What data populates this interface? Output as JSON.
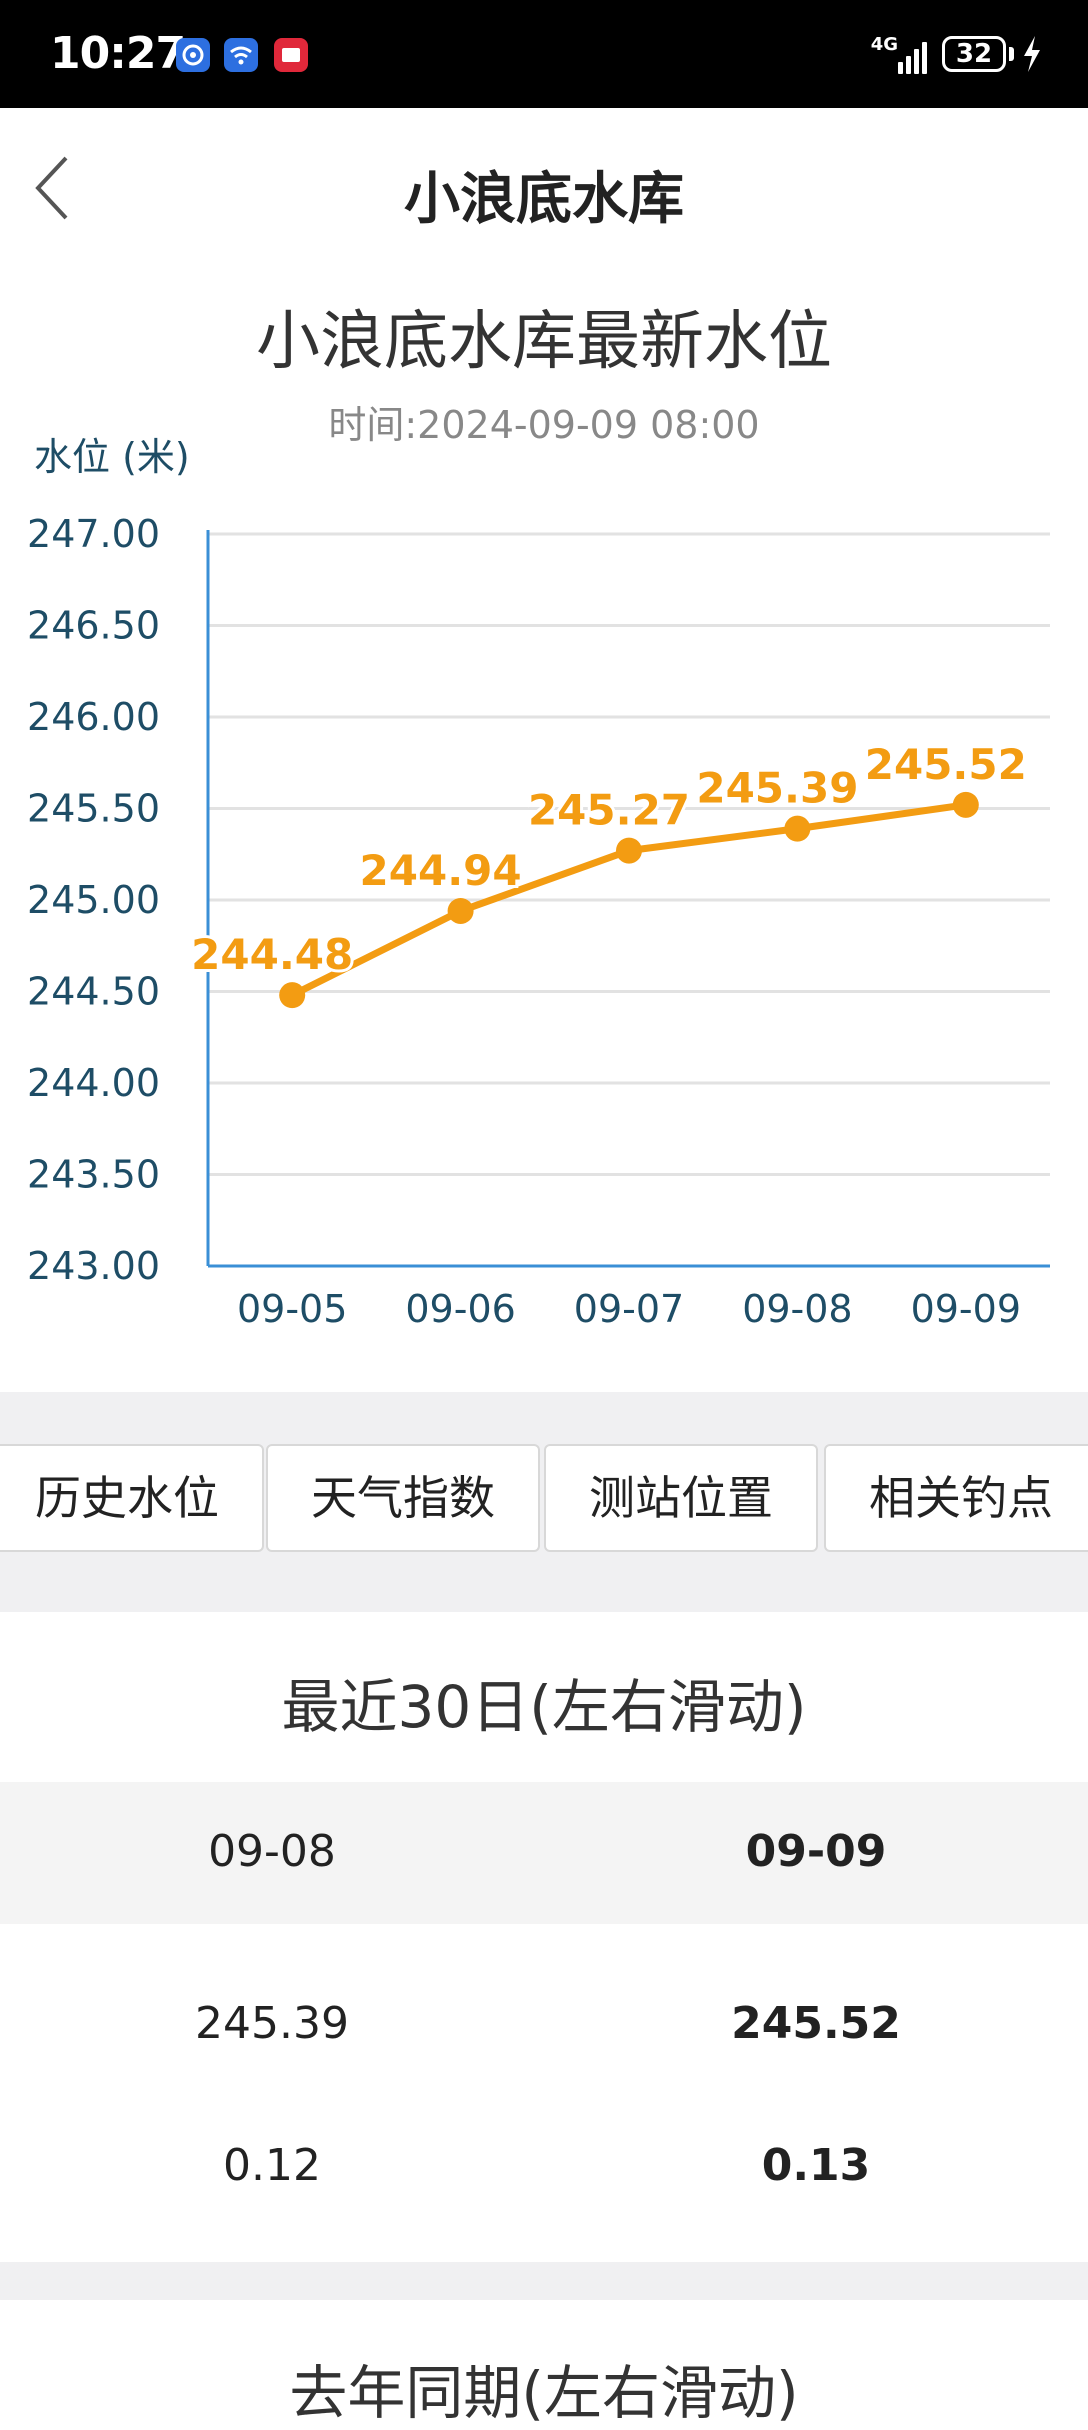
{
  "status_bar": {
    "time": "10:27",
    "network": "4G",
    "battery": "32",
    "app_icons": [
      "app-shield-icon",
      "wifi-app-icon",
      "red-app-icon"
    ]
  },
  "header": {
    "title": "小浪底水库",
    "back_icon": "chevron-left-icon"
  },
  "chart": {
    "title": "小浪底水库最新水位",
    "subtitle": "时间:2024-09-09 08:00"
  },
  "chart_data": {
    "type": "line",
    "title": "小浪底水库最新水位",
    "subtitle": "时间:2024-09-09 08:00",
    "ylabel": "水位 (米)",
    "xlabel": "",
    "categories": [
      "09-05",
      "09-06",
      "09-07",
      "09-08",
      "09-09"
    ],
    "values": [
      244.48,
      244.94,
      245.27,
      245.39,
      245.52
    ],
    "value_labels": [
      "244.48",
      "244.94",
      "245.27",
      "245.39",
      "245.52"
    ],
    "ylim": [
      243.0,
      247.0
    ],
    "yticks": [
      "243.00",
      "243.50",
      "244.00",
      "244.50",
      "245.00",
      "245.50",
      "246.00",
      "246.50",
      "247.00"
    ],
    "ytick_values": [
      243.0,
      243.5,
      244.0,
      244.5,
      245.0,
      245.5,
      246.0,
      246.5,
      247.0
    ],
    "grid": true,
    "line_color": "#f39c12",
    "axis_color": "#3a8fd6",
    "tick_label_color": "#1e4d66"
  },
  "tabs": [
    {
      "label": "历史水位"
    },
    {
      "label": "天气指数"
    },
    {
      "label": "测站位置"
    },
    {
      "label": "相关钓点"
    }
  ],
  "recent": {
    "title": "最近30日(左右滑动)",
    "dates": [
      "09-08",
      "09-09"
    ],
    "levels": [
      "245.39",
      "245.52"
    ],
    "changes": [
      "0.12",
      "0.13"
    ]
  },
  "last_year": {
    "title": "去年同期(左右滑动)"
  }
}
